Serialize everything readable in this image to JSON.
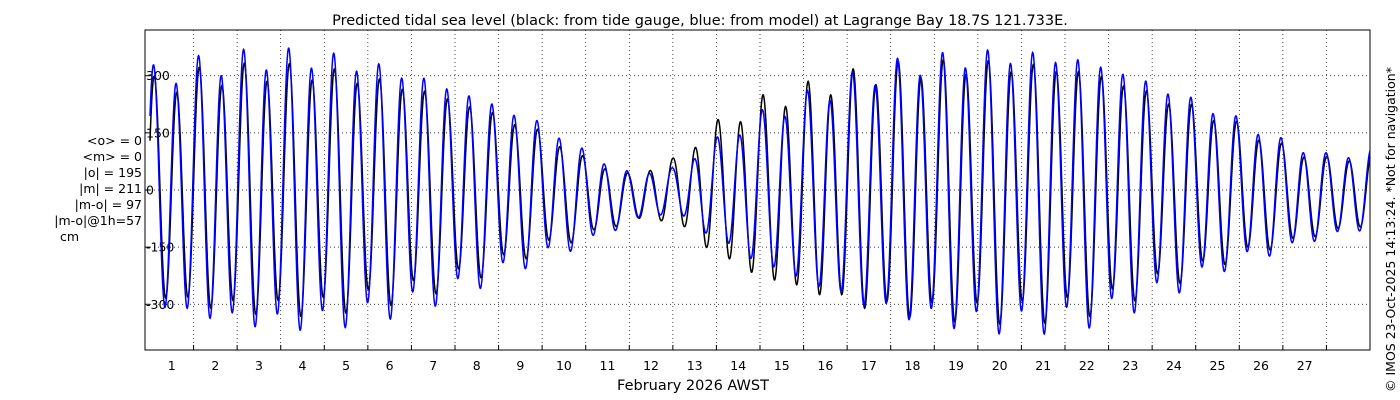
{
  "chart_data": {
    "type": "line",
    "title": "Predicted tidal sea level (black: from tide gauge, blue: from model) at Lagrange Bay 18.7S 121.733E.",
    "xlabel": "February 2026 AWST",
    "ylabel": "",
    "xlim": [
      0,
      28
    ],
    "ylim": [
      -420,
      420
    ],
    "y_ticks": [
      -300,
      -150,
      0,
      150,
      300
    ],
    "y_tick_labels": [
      "-300",
      "-150",
      "0",
      "150",
      "300"
    ],
    "x_tick_labels": [
      "1",
      "2",
      "3",
      "4",
      "5",
      "6",
      "7",
      "8",
      "9",
      "10",
      "11",
      "12",
      "13",
      "14",
      "15",
      "16",
      "17",
      "18",
      "19",
      "20",
      "21",
      "22",
      "23",
      "24",
      "25",
      "26",
      "27"
    ],
    "grid": "dotted",
    "series": [
      {
        "name": "tide gauge",
        "color": "#000000",
        "x": [
          0.0,
          1.0,
          2.0,
          3.0,
          4.0,
          5.0,
          6.0,
          7.0,
          8.0,
          9.0,
          10.0,
          11.0,
          12.0,
          13.0,
          14.0,
          15.0,
          16.0,
          17.0,
          18.0,
          19.0,
          20.0,
          21.0,
          22.0,
          23.0,
          24.0,
          25.0,
          26.0,
          27.0,
          28.0
        ],
        "amplitude": [
          300,
          325,
          340,
          345,
          340,
          320,
          295,
          260,
          215,
          165,
          110,
          65,
          85,
          185,
          250,
          285,
          320,
          345,
          355,
          360,
          358,
          350,
          325,
          275,
          235,
          185,
          140,
          105,
          100
        ],
        "mean": [
          0,
          0,
          0,
          0,
          0,
          0,
          0,
          0,
          0,
          0,
          -20,
          -20,
          0,
          0,
          0,
          0,
          0,
          0,
          0,
          0,
          0,
          0,
          0,
          0,
          0,
          0,
          -15,
          -15,
          0
        ]
      },
      {
        "name": "model",
        "color": "#0000ff",
        "x": [
          0.0,
          1.0,
          2.0,
          3.0,
          4.0,
          5.0,
          6.0,
          7.0,
          8.0,
          9.0,
          10.0,
          11.0,
          12.0,
          13.0,
          14.0,
          15.0,
          16.0,
          17.0,
          18.0,
          19.0,
          20.0,
          21.0,
          22.0,
          23.0,
          24.0,
          25.0,
          26.0,
          27.0,
          28.0
        ],
        "amplitude": [
          330,
          355,
          375,
          385,
          380,
          360,
          330,
          290,
          240,
          190,
          130,
          70,
          60,
          140,
          210,
          260,
          310,
          350,
          370,
          385,
          388,
          380,
          355,
          305,
          255,
          200,
          155,
          115,
          110
        ],
        "mean": [
          0,
          0,
          0,
          0,
          0,
          0,
          0,
          0,
          0,
          0,
          -20,
          -20,
          0,
          0,
          0,
          0,
          0,
          0,
          0,
          0,
          0,
          0,
          0,
          0,
          0,
          0,
          -15,
          -15,
          0
        ]
      }
    ],
    "stats": [
      "<o> = 0",
      "<m> = 0",
      "|o| = 195",
      "|m| = 211",
      "|m-o| = 97",
      "|m-o|@1h=57"
    ],
    "units": "cm",
    "copyright": "© IMOS 23-Oct-2025 14:13:24. *Not for navigation*"
  }
}
